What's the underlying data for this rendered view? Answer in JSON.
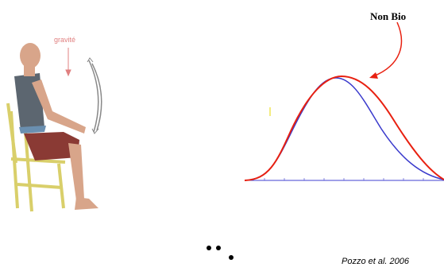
{
  "figure": {
    "gravity_label": "gravité",
    "curve_label": "Non Bio",
    "citation": "Pozzo et al. 2006"
  }
}
